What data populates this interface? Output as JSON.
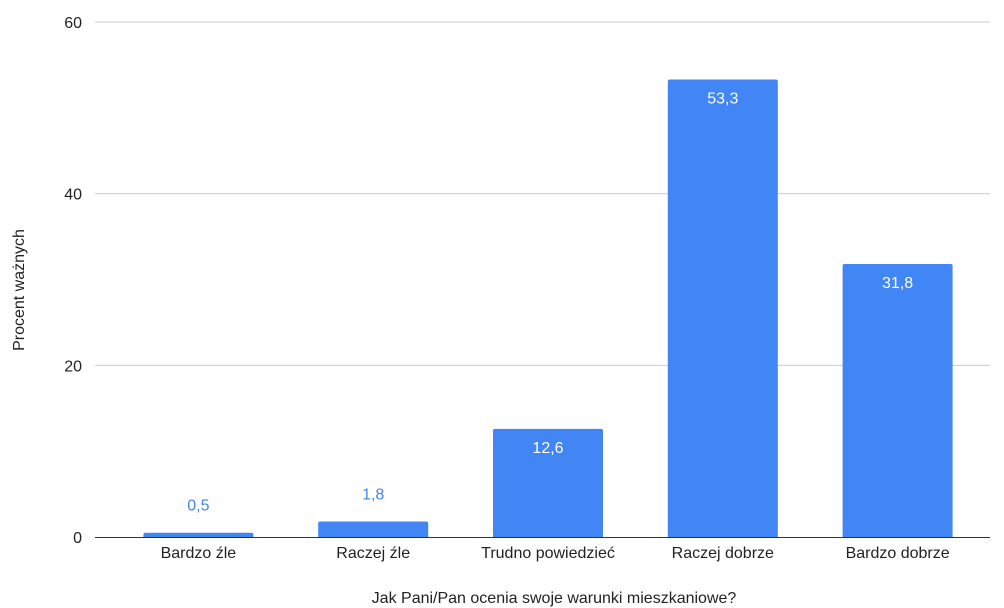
{
  "chart_data": {
    "type": "bar",
    "title": "",
    "xlabel": "Jak Pani/Pan ocenia swoje warunki mieszkaniowe?",
    "ylabel": "Procent ważnych",
    "categories": [
      "Bardzo źle",
      "Raczej źle",
      "Trudno powiedzieć",
      "Raczej dobrze",
      "Bardzo dobrze"
    ],
    "values": [
      0.5,
      1.8,
      12.6,
      53.3,
      31.8
    ],
    "value_labels": [
      "0,5",
      "1,8",
      "12,6",
      "53,3",
      "31,8"
    ],
    "ylim": [
      0,
      60
    ],
    "yticks": [
      0,
      20,
      40,
      60
    ],
    "ytick_labels": [
      "0",
      "20",
      "40",
      "60"
    ],
    "grid": true,
    "legend": "none",
    "bar_color": "#4285f4",
    "inside_label_color": "#ffffff",
    "outside_label_color": "#4285f4"
  }
}
